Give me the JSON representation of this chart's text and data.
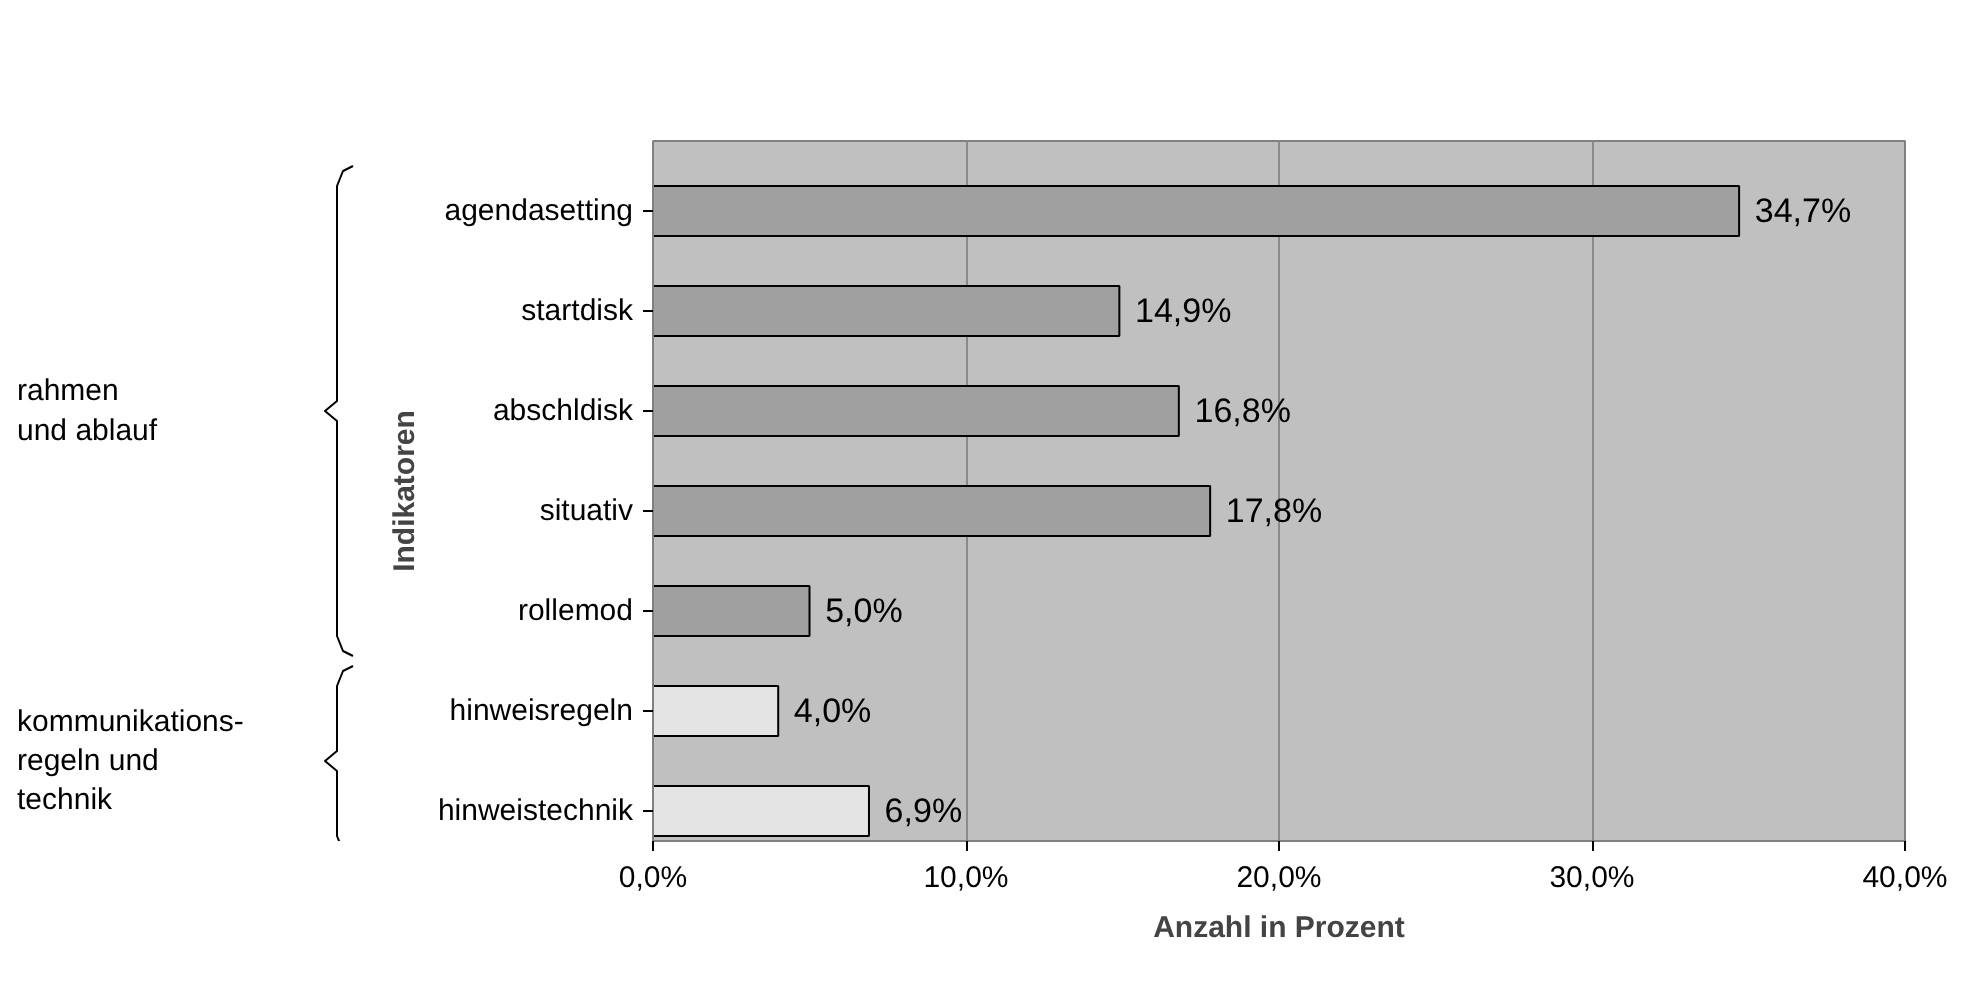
{
  "chart_data": {
    "type": "bar",
    "orientation": "horizontal",
    "categories": [
      "agendasetting",
      "startdisk",
      "abschldisk",
      "situativ",
      "rollemod",
      "hinweisregeln",
      "hinweistechnik"
    ],
    "values": [
      34.7,
      14.9,
      16.8,
      17.8,
      5.0,
      4.0,
      6.9
    ],
    "value_labels": [
      "34,7%",
      "14,9%",
      "16,8%",
      "17,8%",
      "5,0%",
      "4,0%",
      "6,9%"
    ],
    "colors": [
      "#a0a0a0",
      "#a0a0a0",
      "#a0a0a0",
      "#a0a0a0",
      "#a0a0a0",
      "#e4e4e4",
      "#e4e4e4"
    ],
    "xlim": [
      0,
      40
    ],
    "xticks": [
      {
        "value": 0,
        "label": "0,0%"
      },
      {
        "value": 10,
        "label": "10,0%"
      },
      {
        "value": 20,
        "label": "20,0%"
      },
      {
        "value": 30,
        "label": "30,0%"
      },
      {
        "value": 40,
        "label": "40,0%"
      }
    ],
    "xlabel": "Anzahl in Prozent",
    "ylabel": "Indikatoren",
    "grid": "x",
    "annotations": [
      "rahmen\nund ablauf",
      "kommunikations-\nregeln und\ntechnik"
    ]
  }
}
